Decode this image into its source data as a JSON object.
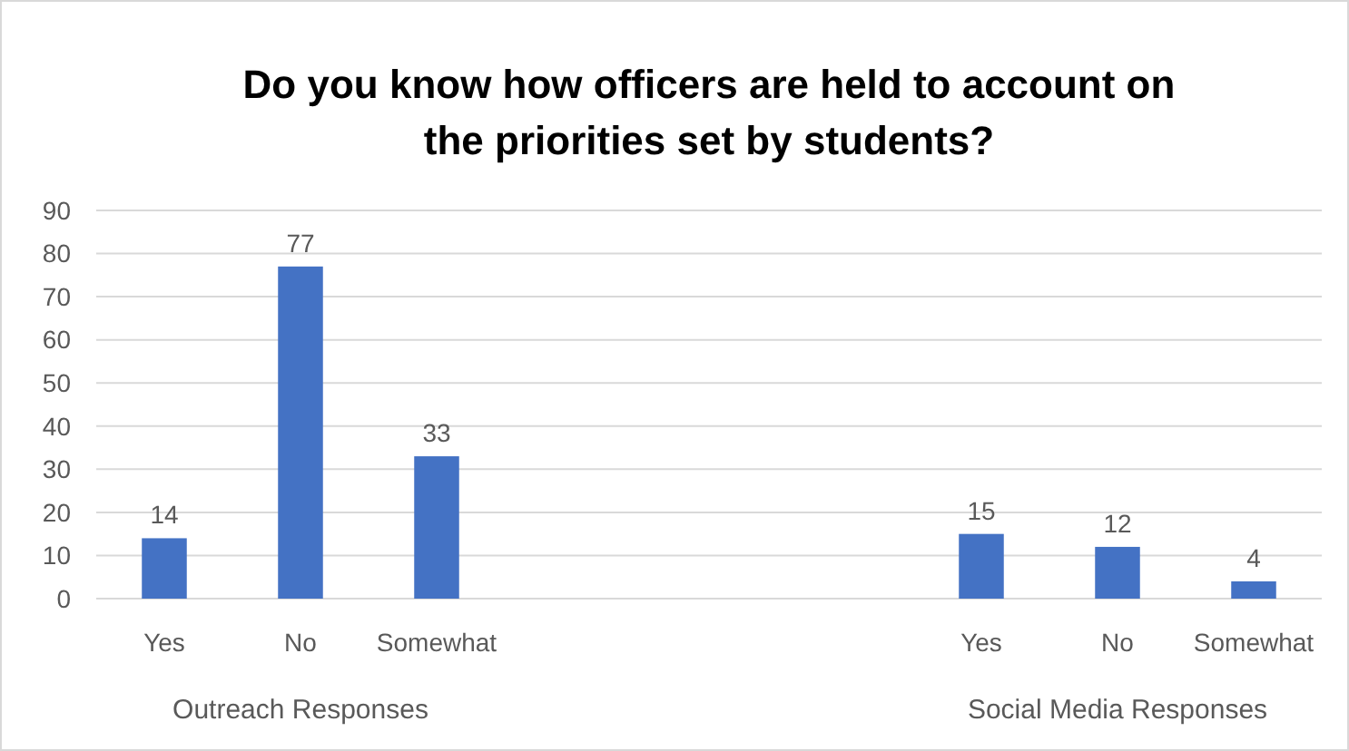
{
  "chart_data": {
    "type": "bar",
    "title": "Do you know how officers are held to account on the priorities set by students?",
    "categories": [
      "Yes",
      "No",
      "Somewhat",
      null,
      null,
      null,
      "Yes",
      "No",
      "Somewhat"
    ],
    "values": [
      14,
      77,
      33,
      null,
      null,
      null,
      15,
      12,
      4
    ],
    "color": "#4472c4",
    "ylim": [
      0,
      90
    ],
    "yticks": [
      0,
      10,
      20,
      30,
      40,
      50,
      60,
      70,
      80,
      90
    ],
    "grid": "y",
    "data_labels": true,
    "annotations": [
      "Outreach Responses",
      "Social Media Responses"
    ]
  }
}
